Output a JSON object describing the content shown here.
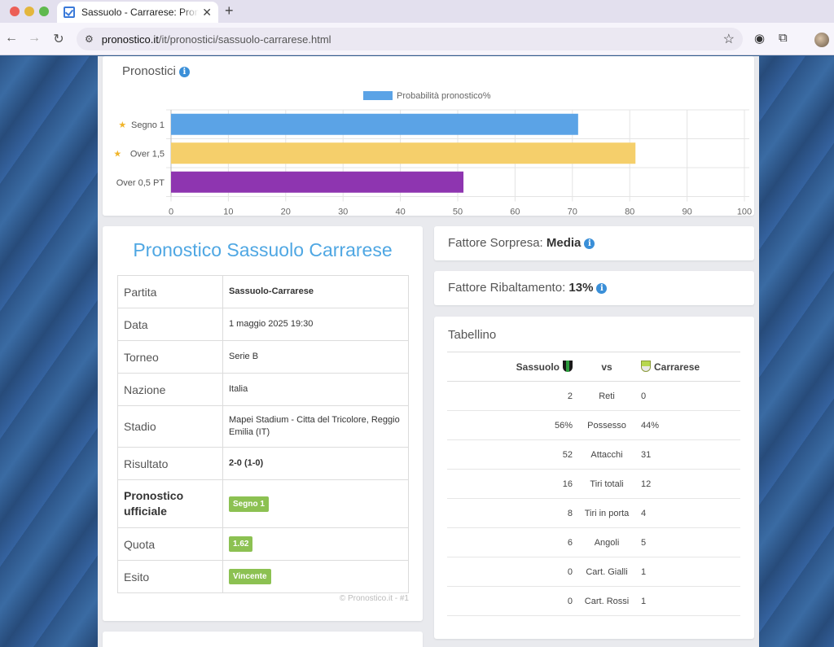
{
  "browser": {
    "tab_title": "Sassuolo - Carrarese: Pronostico",
    "url_host": "pronostico.it",
    "url_path": "/it/pronostici/sassuolo-carrarese.html"
  },
  "chart_card": {
    "title": "Pronostici"
  },
  "chart_data": {
    "type": "bar",
    "orientation": "horizontal",
    "categories": [
      "Segno 1",
      "Over 1,5",
      "Over 0,5 PT"
    ],
    "starred": [
      true,
      true,
      false
    ],
    "values": [
      71,
      81,
      51
    ],
    "bar_colors": [
      "#5ba3e6",
      "#f5cf6b",
      "#8e35b0"
    ],
    "series": [
      {
        "name": "Probabilità pronostico%",
        "values": [
          71,
          81,
          51
        ]
      }
    ],
    "legend_color": "#5ba3e6",
    "xlim": [
      0,
      100
    ],
    "xticks": [
      0,
      10,
      20,
      30,
      40,
      50,
      60,
      70,
      80,
      90,
      100
    ],
    "legend_position": "top-center",
    "grid": true
  },
  "match": {
    "title": "Pronostico Sassuolo Carrarese",
    "rows": [
      {
        "label": "Partita",
        "value": "Sassuolo-Carrarese"
      },
      {
        "label": "Data",
        "value": "1 maggio 2025 19:30"
      },
      {
        "label": "Torneo",
        "value": "Serie B"
      },
      {
        "label": "Nazione",
        "value": "Italia"
      },
      {
        "label": "Stadio",
        "value": "Mapei Stadium - Citta del Tricolore, Reggio Emilia (IT)"
      },
      {
        "label": "Risultato",
        "value": "2-0 (1-0)"
      },
      {
        "label": "Pronostico ufficiale",
        "value": "Segno 1"
      },
      {
        "label": "Quota",
        "value": "1.62"
      },
      {
        "label": "Esito",
        "value": "Vincente"
      }
    ],
    "copyright": "© Pronostico.it - #1"
  },
  "factors": {
    "sorpresa_label": "Fattore Sorpresa:",
    "sorpresa_value": "Media",
    "ribaltamento_label": "Fattore Ribaltamento:",
    "ribaltamento_value": "13%"
  },
  "tabellino": {
    "title": "Tabellino",
    "home": "Sassuolo",
    "vs": "vs",
    "away": "Carrarese",
    "rows": [
      {
        "home": "2",
        "stat": "Reti",
        "away": "0"
      },
      {
        "home": "56%",
        "stat": "Possesso",
        "away": "44%"
      },
      {
        "home": "52",
        "stat": "Attacchi",
        "away": "31"
      },
      {
        "home": "16",
        "stat": "Tiri totali",
        "away": "12"
      },
      {
        "home": "8",
        "stat": "Tiri in porta",
        "away": "4"
      },
      {
        "home": "6",
        "stat": "Angoli",
        "away": "5"
      },
      {
        "home": "0",
        "stat": "Cart. Gialli",
        "away": "1"
      },
      {
        "home": "0",
        "stat": "Cart. Rossi",
        "away": "1"
      }
    ]
  }
}
